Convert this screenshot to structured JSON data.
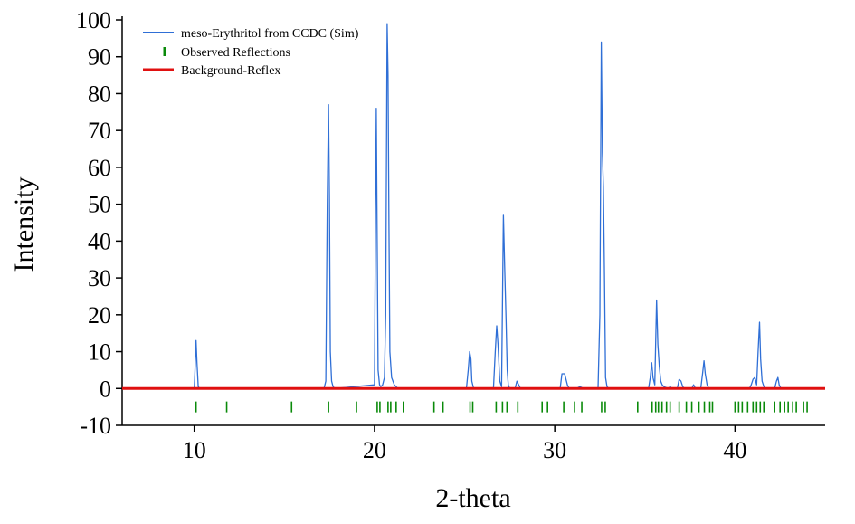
{
  "chart_data": {
    "type": "line",
    "xlabel": "2-theta",
    "ylabel": "Intensity",
    "xlim": [
      6,
      45
    ],
    "ylim": [
      -10,
      100
    ],
    "x_ticks": [
      10,
      20,
      30,
      40
    ],
    "y_ticks": [
      -10,
      0,
      10,
      20,
      30,
      40,
      50,
      60,
      70,
      80,
      90,
      100
    ],
    "grid": false,
    "legend_position": "top-left",
    "series": [
      {
        "name": "meso-Erythritol from CCDC (Sim)",
        "kind": "line",
        "color": "#2f6fd6",
        "x": [
          6.0,
          10.0,
          10.05,
          10.1,
          10.15,
          10.22,
          10.3,
          10.35,
          10.45,
          17.2,
          17.3,
          17.38,
          17.45,
          17.5,
          17.55,
          17.62,
          17.7,
          17.8,
          20.0,
          20.05,
          20.1,
          20.15,
          20.2,
          20.28,
          20.35,
          20.45,
          20.55,
          20.62,
          20.7,
          20.75,
          20.8,
          20.85,
          20.95,
          21.1,
          21.3,
          25.1,
          25.2,
          25.28,
          25.35,
          25.4,
          25.5,
          26.6,
          26.7,
          26.78,
          26.85,
          26.95,
          27.05,
          27.15,
          27.22,
          27.3,
          27.36,
          27.42,
          27.5,
          27.8,
          27.9,
          28.0,
          28.1,
          29.8,
          30.3,
          30.4,
          30.55,
          30.7,
          30.8,
          31.2,
          31.4,
          31.6,
          32.4,
          32.5,
          32.58,
          32.64,
          32.7,
          32.76,
          32.82,
          32.9,
          33.0,
          35.2,
          35.3,
          35.38,
          35.45,
          35.55,
          35.65,
          35.72,
          35.8,
          35.88,
          35.96,
          36.05,
          36.3,
          36.4,
          36.5,
          36.8,
          36.9,
          37.0,
          37.1,
          37.2,
          37.6,
          37.7,
          37.8,
          38.1,
          38.2,
          38.28,
          38.35,
          38.45,
          38.55,
          40.8,
          40.9,
          41.0,
          41.1,
          41.2,
          41.28,
          41.36,
          41.42,
          41.5,
          41.6,
          41.7,
          42.2,
          42.3,
          42.38,
          42.45,
          42.55,
          42.7,
          44.5
        ],
        "y": [
          0.0,
          0.0,
          6.0,
          13.0,
          7.0,
          0.5,
          0.0,
          0.0,
          0.0,
          0.0,
          2.0,
          50.0,
          77.0,
          52.0,
          10.0,
          2.0,
          0.5,
          0.0,
          1.0,
          41.0,
          76.0,
          40.0,
          5.0,
          1.0,
          0.5,
          1.0,
          3.0,
          20.0,
          99.0,
          85.0,
          44.0,
          10.0,
          3.0,
          1.0,
          0.0,
          0.0,
          5.0,
          10.0,
          8.0,
          2.0,
          0.0,
          0.0,
          10.0,
          17.0,
          12.0,
          2.0,
          0.5,
          47.0,
          33.0,
          18.0,
          5.0,
          1.0,
          0.0,
          0.0,
          2.0,
          1.0,
          0.0,
          0.0,
          0.0,
          4.0,
          4.0,
          1.0,
          0.0,
          0.0,
          0.5,
          0.0,
          0.0,
          20.0,
          94.0,
          64.0,
          55.0,
          31.0,
          3.0,
          0.5,
          0.0,
          0.0,
          3.0,
          7.0,
          3.0,
          1.0,
          24.0,
          12.0,
          6.0,
          2.0,
          1.0,
          0.5,
          0.0,
          0.5,
          0.0,
          0.0,
          2.5,
          2.0,
          0.5,
          0.0,
          0.0,
          1.0,
          0.0,
          0.0,
          4.0,
          7.5,
          4.0,
          1.0,
          0.0,
          0.0,
          1.0,
          2.5,
          3.0,
          1.0,
          10.0,
          18.0,
          8.0,
          2.0,
          0.5,
          0.0,
          0.0,
          2.0,
          3.0,
          1.0,
          0.0,
          0.0,
          0.0
        ]
      },
      {
        "name": "Observed Reflections",
        "kind": "tick",
        "color": "#0a8a0a",
        "y_level": -5,
        "x": [
          10.1,
          11.8,
          15.4,
          17.45,
          19.0,
          20.15,
          20.3,
          20.75,
          20.9,
          21.2,
          21.6,
          23.3,
          23.8,
          25.3,
          25.45,
          26.75,
          27.1,
          27.35,
          27.95,
          29.3,
          29.6,
          30.5,
          31.1,
          31.5,
          32.6,
          32.8,
          34.6,
          35.4,
          35.6,
          35.75,
          35.95,
          36.2,
          36.4,
          36.9,
          37.3,
          37.6,
          38.0,
          38.3,
          38.6,
          38.75,
          40.0,
          40.2,
          40.4,
          40.7,
          41.0,
          41.2,
          41.4,
          41.6,
          42.2,
          42.5,
          42.75,
          42.95,
          43.2,
          43.4,
          43.8,
          44.0
        ]
      },
      {
        "name": "Background-Reflex",
        "kind": "line",
        "color": "#e01010",
        "x": [
          6.0,
          45.0
        ],
        "y": [
          0.0,
          0.0
        ]
      }
    ]
  }
}
